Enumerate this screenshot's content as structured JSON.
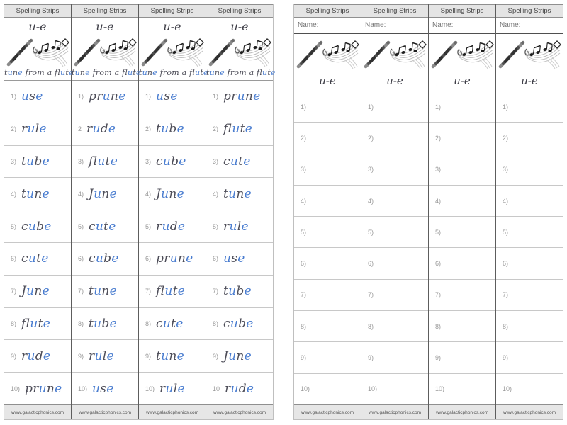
{
  "document_title": "Spelling Strips",
  "phonics_pattern": "u-e",
  "image_icon": "flute-and-music-notes-icon",
  "colors": {
    "highlight_blue": "#4a7dd0",
    "letter_dark": "#4d4d58",
    "number_gray": "#9a9a9a",
    "header_background": "#e4e4e4"
  },
  "footer_url": "www.galacticphonics.com",
  "page1": {
    "strips": [
      {
        "header": "Spelling Strips",
        "title": "u-e",
        "caption": "tune from a flute",
        "footer": "www.galacticphonics.com",
        "rows": [
          {
            "num": "1)",
            "word": "use"
          },
          {
            "num": "2)",
            "word": "rule"
          },
          {
            "num": "3)",
            "word": "tube"
          },
          {
            "num": "4)",
            "word": "tune"
          },
          {
            "num": "5)",
            "word": "cube"
          },
          {
            "num": "6)",
            "word": "cute"
          },
          {
            "num": "7)",
            "word": "June"
          },
          {
            "num": "8)",
            "word": "flute"
          },
          {
            "num": "9)",
            "word": "rude"
          },
          {
            "num": "10)",
            "word": "prune"
          }
        ]
      },
      {
        "header": "Spelling Strips",
        "title": "u-e",
        "caption": "tune from a flute",
        "footer": "www.galacticphonics.com",
        "rows": [
          {
            "num": "1)",
            "word": "prune"
          },
          {
            "num": "2",
            "word": "rude"
          },
          {
            "num": "3)",
            "word": "flute"
          },
          {
            "num": "4)",
            "word": "June"
          },
          {
            "num": "5)",
            "word": "cute"
          },
          {
            "num": "6)",
            "word": "cube"
          },
          {
            "num": "7)",
            "word": "tune"
          },
          {
            "num": "8)",
            "word": "tube"
          },
          {
            "num": "9)",
            "word": "rule"
          },
          {
            "num": "10)",
            "word": "use"
          }
        ]
      },
      {
        "header": "Spelling Strips",
        "title": "u-e",
        "caption": "tune from a flute",
        "footer": "www.galacticphonics.com",
        "rows": [
          {
            "num": "1)",
            "word": "use"
          },
          {
            "num": "2)",
            "word": "tube"
          },
          {
            "num": "3)",
            "word": "cube"
          },
          {
            "num": "4)",
            "word": "June"
          },
          {
            "num": "5)",
            "word": "rude"
          },
          {
            "num": "6)",
            "word": "prune"
          },
          {
            "num": "7)",
            "word": "flute"
          },
          {
            "num": "8)",
            "word": "cute"
          },
          {
            "num": "9)",
            "word": "tune"
          },
          {
            "num": "10)",
            "word": "rule"
          }
        ]
      },
      {
        "header": "Spelling Strips",
        "title": "u-e",
        "caption": "tune from a flute",
        "footer": "www.galacticphonics.com",
        "rows": [
          {
            "num": "1)",
            "word": "prune"
          },
          {
            "num": "2)",
            "word": "flute"
          },
          {
            "num": "3)",
            "word": "cute"
          },
          {
            "num": "4)",
            "word": "tune"
          },
          {
            "num": "5)",
            "word": "rule"
          },
          {
            "num": "6)",
            "word": "use"
          },
          {
            "num": "7)",
            "word": "tube"
          },
          {
            "num": "8)",
            "word": "cube"
          },
          {
            "num": "9)",
            "word": "June"
          },
          {
            "num": "10",
            "word": "rude"
          }
        ]
      }
    ]
  },
  "page2": {
    "strips": [
      {
        "header": "Spelling Strips",
        "name_label": "Name:",
        "title": "u-e",
        "footer": "www.galacticphonics.com",
        "rows": [
          {
            "num": "1)"
          },
          {
            "num": "2)"
          },
          {
            "num": "3)"
          },
          {
            "num": "4)"
          },
          {
            "num": "5)"
          },
          {
            "num": "6)"
          },
          {
            "num": "7)"
          },
          {
            "num": "8)"
          },
          {
            "num": "9)"
          },
          {
            "num": "10)"
          }
        ]
      },
      {
        "header": "Spelling Strips",
        "name_label": "Name:",
        "title": "u-e",
        "footer": "www.galacticphonics.com",
        "rows": [
          {
            "num": "1)"
          },
          {
            "num": "2)"
          },
          {
            "num": "3)"
          },
          {
            "num": "4)"
          },
          {
            "num": "5)"
          },
          {
            "num": "6)"
          },
          {
            "num": "7)"
          },
          {
            "num": "8)"
          },
          {
            "num": "9)"
          },
          {
            "num": "10)"
          }
        ]
      },
      {
        "header": "Spelling Strips",
        "name_label": "Name:",
        "title": "u-e",
        "footer": "www.galacticphonics.com",
        "rows": [
          {
            "num": "1)"
          },
          {
            "num": "2)"
          },
          {
            "num": "3)"
          },
          {
            "num": "4)"
          },
          {
            "num": "5)"
          },
          {
            "num": "6)"
          },
          {
            "num": "7)"
          },
          {
            "num": "8)"
          },
          {
            "num": "9)"
          },
          {
            "num": "10)"
          }
        ]
      },
      {
        "header": "Spelling Strips",
        "name_label": "Name:",
        "title": "u-e",
        "footer": "www.galacticphonics.com",
        "rows": [
          {
            "num": "1)"
          },
          {
            "num": "2)"
          },
          {
            "num": "3)"
          },
          {
            "num": "4)"
          },
          {
            "num": "5)"
          },
          {
            "num": "6)"
          },
          {
            "num": "7)"
          },
          {
            "num": "8)"
          },
          {
            "num": "9)"
          },
          {
            "num": "10)"
          }
        ]
      }
    ]
  }
}
